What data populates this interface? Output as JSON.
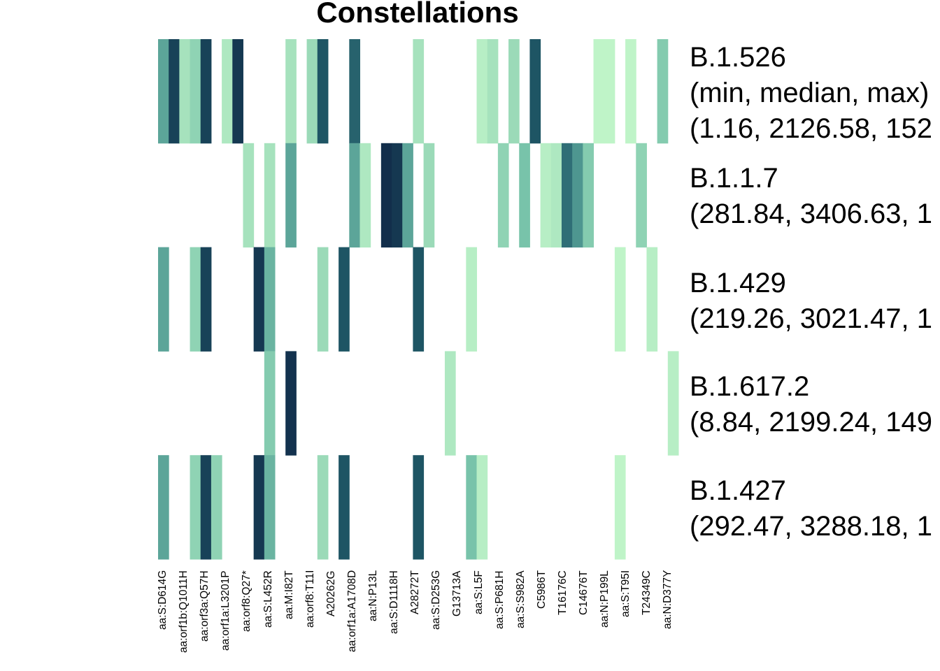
{
  "title": "Constellations",
  "chart_data": {
    "type": "heatmap",
    "title": "Constellations",
    "legend": "none",
    "grid": false,
    "columns": [
      "aa:S:D614G",
      "aa:orf1b:Q1011H",
      "aa:orf3a:Q57H",
      "aa:orf1a:L3201P",
      "aa:orf8:Q27*",
      "aa:S:L452R",
      "aa:M:I82T",
      "aa:orf8:T11I",
      "A20262G",
      "aa:orf1a:A1708D",
      "aa:N:P13L",
      "aa:S:D1118H",
      "A28272T",
      "aa:S:D253G",
      "G13713A",
      "aa:S:L5F",
      "aa:S:P681H",
      "aa:S:S982A",
      "C5986T",
      "T16176C",
      "C14676T",
      "aa:N:P199L",
      "aa:S:T95I",
      "T24349C",
      "aa:N:D377Y"
    ],
    "rows": [
      {
        "name": "B.1.526",
        "stats_header": "(min, median, max)",
        "stats": "(1.16, 2126.58, 152"
      },
      {
        "name": "B.1.1.7",
        "stats": "(281.84, 3406.63, 1"
      },
      {
        "name": "B.1.429",
        "stats": "(219.26, 3021.47, 1"
      },
      {
        "name": "B.1.617.2",
        "stats": "(8.84, 2199.24, 149"
      },
      {
        "name": "B.1.427",
        "stats": "(292.47, 3288.18, 1"
      }
    ],
    "cells": [
      [
        0.5,
        0.9,
        0.2,
        0.3,
        0.9,
        0,
        0.15,
        0.95,
        0,
        0,
        0,
        0,
        0.2,
        0,
        0.25,
        0.8,
        0,
        0,
        0.75,
        0,
        0,
        0,
        0,
        0,
        0.2,
        0,
        0,
        0,
        0,
        0,
        0.1,
        0.2,
        0,
        0.25,
        0,
        0.8,
        0,
        0,
        0,
        0,
        0,
        0.05,
        0.05,
        0,
        0.05,
        0,
        0,
        0.35,
        0
      ],
      [
        0,
        0,
        0,
        0,
        0,
        0,
        0,
        0,
        0.2,
        0,
        0.2,
        0,
        0.5,
        0,
        0,
        0,
        0,
        0,
        0.5,
        0.15,
        0,
        1,
        0.95,
        0.5,
        0,
        0.25,
        0,
        0,
        0,
        0,
        0,
        0,
        0.3,
        0,
        0.4,
        0,
        0.1,
        0.15,
        0.7,
        0.55,
        0.35,
        0,
        0,
        0,
        0,
        0.3,
        0,
        0,
        0
      ],
      [
        0.5,
        0,
        0,
        0.3,
        0.9,
        0,
        0,
        0,
        0,
        0.95,
        0.45,
        0,
        0,
        0,
        0,
        0.25,
        0,
        0.8,
        0,
        0,
        0,
        0,
        0,
        0,
        0.8,
        0,
        0,
        0,
        0,
        0.1,
        0,
        0,
        0,
        0,
        0,
        0,
        0,
        0,
        0,
        0,
        0,
        0,
        0,
        0.05,
        0,
        0,
        0.1,
        0,
        0
      ],
      [
        0,
        0,
        0,
        0,
        0,
        0,
        0,
        0,
        0,
        0,
        0.35,
        0,
        0.98,
        0,
        0,
        0,
        0,
        0,
        0,
        0,
        0,
        0,
        0,
        0,
        0,
        0,
        0,
        0.15,
        0,
        0,
        0,
        0,
        0,
        0,
        0,
        0,
        0,
        0,
        0,
        0,
        0,
        0,
        0,
        0,
        0,
        0,
        0,
        0,
        0.1
      ],
      [
        0.5,
        0,
        0,
        0.3,
        0.9,
        0.3,
        0,
        0,
        0,
        0.95,
        0.45,
        0,
        0,
        0,
        0,
        0.25,
        0,
        0.8,
        0,
        0,
        0,
        0,
        0,
        0,
        0.8,
        0,
        0,
        0,
        0,
        0.4,
        0.1,
        0,
        0,
        0,
        0,
        0,
        0,
        0,
        0,
        0,
        0,
        0,
        0,
        0.05,
        0,
        0,
        0,
        0,
        0
      ]
    ]
  }
}
